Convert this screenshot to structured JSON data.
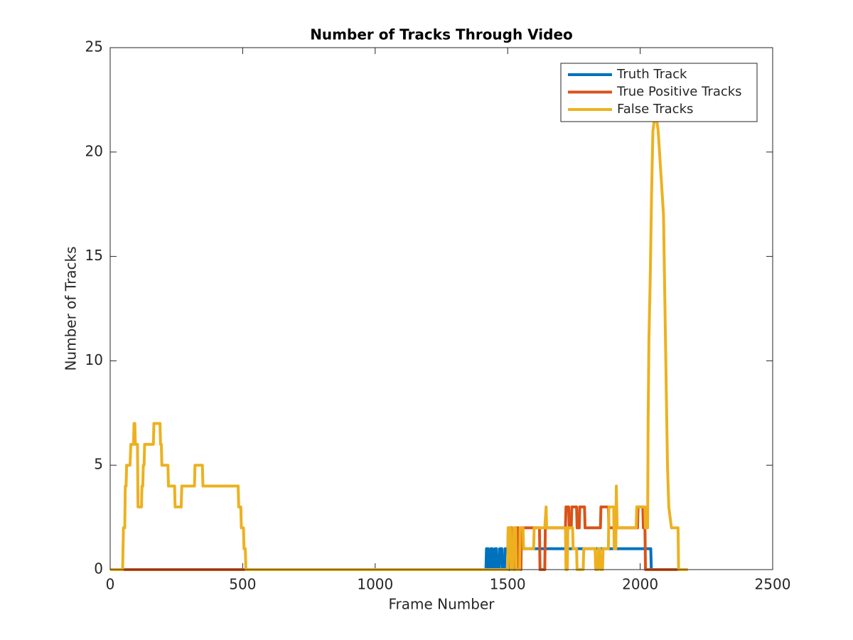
{
  "chart_data": {
    "type": "line",
    "title": "Number of Tracks Through Video",
    "x_label": "Frame Number",
    "y_label": "Number of Tracks",
    "xlim": [
      0,
      2500
    ],
    "xticks": [
      0,
      500,
      1000,
      1500,
      2000,
      2500
    ],
    "ylim": [
      0,
      25
    ],
    "yticks": [
      0,
      5,
      10,
      15,
      20,
      25
    ],
    "grid": false,
    "legend": "northeast",
    "series": [
      {
        "name": "Truth Track",
        "color": "#0072BD",
        "x": [
          0,
          1418,
          1420,
          1426,
          1428,
          1434,
          1436,
          1442,
          1444,
          1450,
          1452,
          1458,
          1460,
          1468,
          1470,
          1478,
          1480,
          1488,
          1490,
          1500,
          1502,
          1508,
          1510,
          2040,
          2042,
          2150
        ],
        "values": [
          0,
          0,
          1,
          1,
          0,
          0,
          1,
          1,
          0,
          0,
          1,
          1,
          0,
          0,
          1,
          1,
          0,
          0,
          1,
          1,
          0,
          0,
          1,
          1,
          0,
          0
        ]
      },
      {
        "name": "True Positive Tracks",
        "color": "#D95319",
        "x": [
          0,
          1500,
          1502,
          1515,
          1517,
          1525,
          1527,
          1540,
          1542,
          1550,
          1552,
          1620,
          1622,
          1640,
          1642,
          1718,
          1720,
          1730,
          1732,
          1740,
          1742,
          1760,
          1762,
          1770,
          1772,
          1790,
          1792,
          1850,
          1852,
          1880,
          1882,
          1990,
          1992,
          2010,
          2012,
          2018,
          2020,
          2150
        ],
        "values": [
          0,
          0,
          2,
          2,
          0,
          0,
          2,
          2,
          0,
          0,
          2,
          2,
          0,
          0,
          2,
          2,
          3,
          3,
          2,
          2,
          3,
          3,
          2,
          2,
          3,
          3,
          2,
          2,
          3,
          3,
          2,
          2,
          3,
          3,
          2,
          2,
          0,
          0
        ]
      },
      {
        "name": "False Tracks",
        "color": "#EDB120",
        "x": [
          0,
          47,
          50,
          55,
          57,
          60,
          62,
          75,
          78,
          88,
          90,
          93,
          95,
          103,
          105,
          118,
          120,
          123,
          125,
          128,
          130,
          163,
          165,
          188,
          190,
          193,
          195,
          218,
          220,
          243,
          245,
          268,
          270,
          318,
          320,
          348,
          350,
          483,
          485,
          493,
          495,
          503,
          505,
          510,
          512,
          1500,
          1502,
          1510,
          1512,
          1520,
          1522,
          1530,
          1532,
          1545,
          1547,
          1558,
          1560,
          1598,
          1600,
          1640,
          1645,
          1647,
          1718,
          1720,
          1725,
          1727,
          1745,
          1747,
          1760,
          1762,
          1785,
          1787,
          1830,
          1832,
          1840,
          1842,
          1848,
          1850,
          1858,
          1860,
          1880,
          1882,
          1900,
          1902,
          1908,
          1910,
          1913,
          1985,
          1987,
          2018,
          2020,
          2028,
          2030,
          2033,
          2038,
          2043,
          2048,
          2058,
          2068,
          2078,
          2088,
          2093,
          2098,
          2103,
          2108,
          2118,
          2143,
          2145,
          2180
        ],
        "values": [
          0,
          0,
          2,
          2,
          4,
          4,
          5,
          5,
          6,
          6,
          7,
          7,
          6,
          6,
          3,
          3,
          4,
          4,
          5,
          5,
          6,
          6,
          7,
          7,
          6,
          6,
          5,
          5,
          4,
          4,
          3,
          3,
          4,
          4,
          5,
          5,
          4,
          4,
          3,
          3,
          2,
          2,
          1,
          1,
          0,
          0,
          2,
          2,
          0,
          0,
          2,
          2,
          0,
          0,
          2,
          2,
          1,
          1,
          2,
          2,
          3,
          2,
          2,
          0,
          0,
          2,
          2,
          1,
          1,
          0,
          0,
          1,
          1,
          0,
          0,
          1,
          1,
          0,
          0,
          1,
          1,
          3,
          3,
          1,
          1,
          4,
          2,
          2,
          3,
          3,
          2,
          2,
          7,
          11,
          14,
          18,
          21,
          22,
          21,
          19,
          17,
          13,
          9,
          5,
          3,
          2,
          2,
          0,
          0
        ]
      }
    ]
  }
}
